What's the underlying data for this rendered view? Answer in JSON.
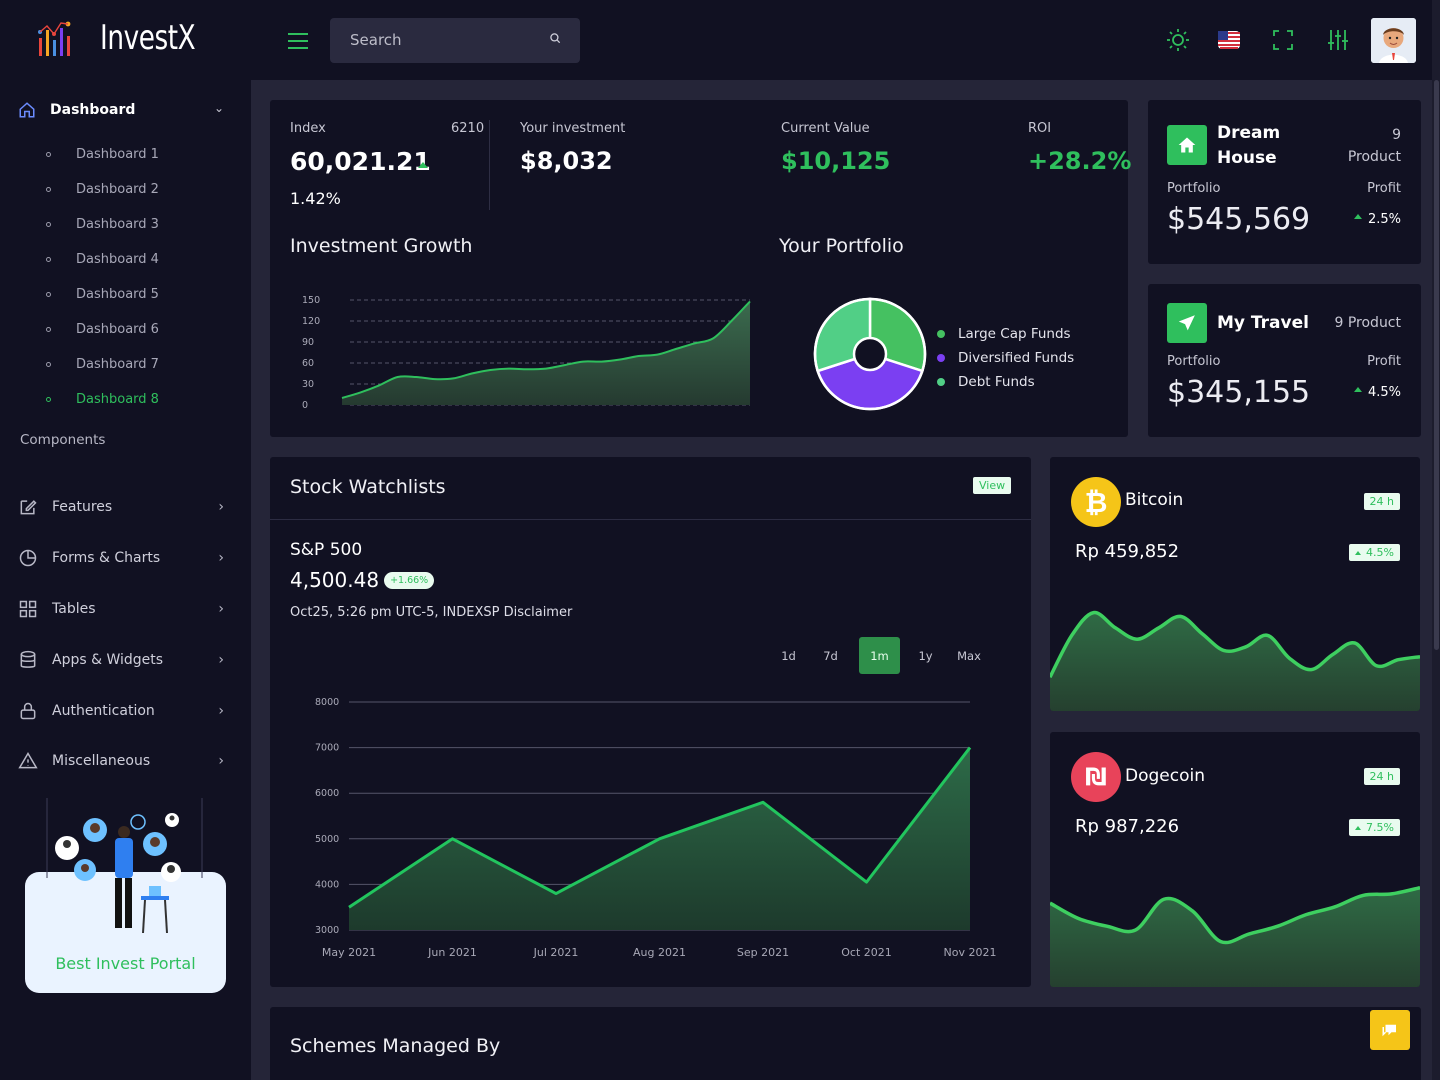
{
  "app": {
    "name": "InvestX"
  },
  "search": {
    "placeholder": "Search"
  },
  "sidebar": {
    "dashboard_label": "Dashboard",
    "sub_items": [
      "Dashboard 1",
      "Dashboard 2",
      "Dashboard 3",
      "Dashboard 4",
      "Dashboard 5",
      "Dashboard 6",
      "Dashboard 7",
      "Dashboard 8"
    ],
    "active_sub_item": "Dashboard 8",
    "section_title": "Components",
    "menu": [
      {
        "label": "Features",
        "icon": "edit-icon"
      },
      {
        "label": "Forms & Charts",
        "icon": "pie-chart-icon"
      },
      {
        "label": "Tables",
        "icon": "grid-icon"
      },
      {
        "label": "Apps & Widgets",
        "icon": "database-icon"
      },
      {
        "label": "Authentication",
        "icon": "lock-icon"
      },
      {
        "label": "Miscellaneous",
        "icon": "warning-icon"
      }
    ],
    "promo_text": "Best Invest Portal"
  },
  "overview": {
    "index_label": "Index",
    "index_code": "6210",
    "index_value": "60,021.21",
    "index_change": "1.42%",
    "investment_label": "Your investment",
    "investment_value": "$8,032",
    "current_label": "Current Value",
    "current_value": "$10,125",
    "roi_label": "ROI",
    "roi_value": "+28.2%",
    "growth_title": "Investment Growth",
    "portfolio_title": "Your Portfolio"
  },
  "dream_house": {
    "title_line1": "Dream",
    "title_line2": "House",
    "count": "9",
    "count_label": "Product",
    "portfolio_label": "Portfolio",
    "profit_label": "Profit",
    "value": "$545,569",
    "profit": "2.5%"
  },
  "my_travel": {
    "title": "My Travel",
    "count_text": "9 Product",
    "portfolio_label": "Portfolio",
    "profit_label": "Profit",
    "value": "$345,155",
    "profit": "4.5%"
  },
  "watchlist": {
    "title": "Stock Watchlists",
    "view_label": "View",
    "symbol": "S&P 500",
    "price": "4,500.48",
    "change": "+1.66%",
    "meta": "Oct25, 5:26 pm UTC-5, INDEXSP Disclaimer",
    "ranges": [
      "1d",
      "7d",
      "1m",
      "1y",
      "Max"
    ],
    "active_range": "1m"
  },
  "bitcoin": {
    "name": "Bitcoin",
    "period": "24 h",
    "price": "Rp 459,852",
    "change": "4.5%"
  },
  "dogecoin": {
    "name": "Dogecoin",
    "period": "24 h",
    "price": "Rp 987,226",
    "change": "7.5%"
  },
  "schemes": {
    "title": "Schemes Managed By"
  },
  "colors": {
    "accent": "#2fbf5d",
    "purple": "#7b3ff2",
    "card": "#111122",
    "background": "#252538"
  },
  "chart_data": [
    {
      "type": "area",
      "id": "investment-growth",
      "yticks": [
        0,
        30,
        60,
        90,
        120,
        150
      ],
      "ylim": [
        0,
        150
      ],
      "series": [
        {
          "values": [
            10,
            18,
            28,
            40,
            40,
            37,
            38,
            45,
            50,
            52,
            51,
            52,
            57,
            62,
            62,
            65,
            70,
            72,
            80,
            88,
            95,
            120,
            148
          ]
        }
      ]
    },
    {
      "type": "pie",
      "id": "your-portfolio",
      "labels": [
        "Large Cap Funds",
        "Diversified Funds",
        "Debt Funds"
      ],
      "values": [
        30,
        40,
        30
      ],
      "colors": [
        "#45c161",
        "#7b3ff2",
        "#51cf86"
      ]
    },
    {
      "type": "area",
      "id": "sp500",
      "categories": [
        "May 2021",
        "Jun 2021",
        "Jul 2021",
        "Aug 2021",
        "Sep 2021",
        "Oct 2021",
        "Nov 2021"
      ],
      "yticks": [
        3000,
        4000,
        5000,
        6000,
        7000,
        8000
      ],
      "ylim": [
        3000,
        8000
      ],
      "series": [
        {
          "values": [
            3500,
            5000,
            3800,
            5000,
            5800,
            4050,
            7000
          ]
        }
      ]
    },
    {
      "type": "area",
      "id": "bitcoin-spark",
      "series": [
        {
          "values": [
            5,
            60,
            90,
            70,
            55,
            70,
            85,
            62,
            40,
            45,
            60,
            30,
            15,
            35,
            50,
            20,
            28,
            32
          ]
        }
      ]
    },
    {
      "type": "area",
      "id": "dogecoin-spark",
      "series": [
        {
          "values": [
            70,
            50,
            40,
            35,
            75,
            60,
            20,
            30,
            40,
            55,
            65,
            80,
            82,
            90
          ]
        }
      ]
    }
  ]
}
